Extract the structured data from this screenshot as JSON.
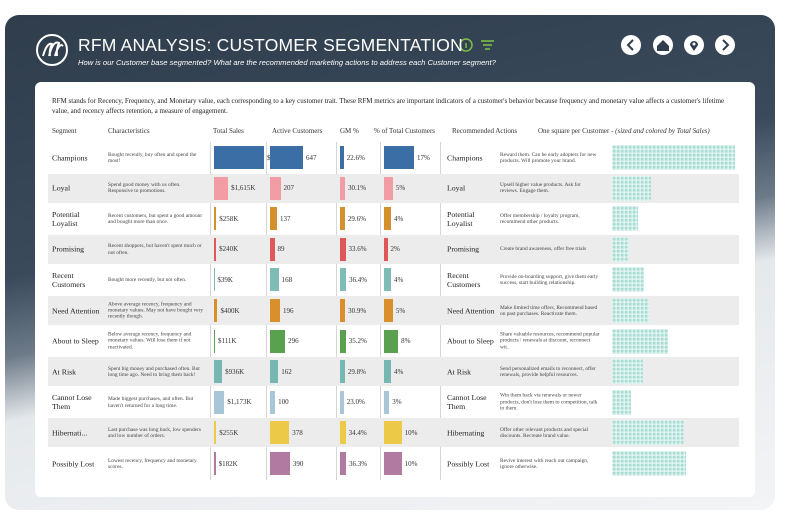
{
  "header": {
    "title": "RFM ANALYSIS: CUSTOMER SEGMENTATION",
    "subtitle": "How is our Customer base segmented? What are the recommended marketing actions to address each Customer segment?"
  },
  "description": "RFM stands for Recency, Frequency, and Monetary value, each corresponding to a key customer trait. These RFM metrics are important indicators of a customer's behavior because frequency and monetary value affects a customer's lifetime value, and recency affects retention, a measure of engagement.",
  "table": {
    "columns": [
      "Segment",
      "Characteristics",
      "Total Sales",
      "Active Customers",
      "GM %",
      "% of Total Customers",
      "Recommended Actions"
    ],
    "waffle_header": {
      "text": "One square per Customer - ",
      "note": "(sized and colored by Total Sales)"
    },
    "rows": [
      {
        "segment": "Champions",
        "characteristics": "Bought recently, buy often and spend the most!",
        "total_sales": 5738,
        "total_sales_label": "$5,738K",
        "active_customers": 647,
        "gm": 22.6,
        "gm_label": "22.6%",
        "pct": 17,
        "pct_label": "17%",
        "rec_segment": "Champions",
        "action": "Reward them. Can be early adopters for new products. Will promote your brand.",
        "color": "#3b6ea5"
      },
      {
        "segment": "Loyal",
        "characteristics": "Spend good money with us often. Responsive to promotions.",
        "total_sales": 1615,
        "total_sales_label": "$1,615K",
        "active_customers": 207,
        "gm": 30.1,
        "gm_label": "30.1%",
        "pct": 5,
        "pct_label": "5%",
        "rec_segment": "Loyal",
        "action": "Upsell higher value products. Ask for reviews. Engage them.",
        "color": "#f29ca3"
      },
      {
        "segment": "Potential Loyalist",
        "characteristics": "Recent customers, but spent a good amount and bought more than once.",
        "total_sales": 258,
        "total_sales_label": "$258K",
        "active_customers": 137,
        "gm": 29.6,
        "gm_label": "29.6%",
        "pct": 4,
        "pct_label": "4%",
        "rec_segment": "Potential Loyalist",
        "action": "Offer membership / loyalty program, recommend other products.",
        "color": "#d4902c"
      },
      {
        "segment": "Promising",
        "characteristics": "Recent shoppers, but haven't spent much or not often.",
        "total_sales": 240,
        "total_sales_label": "$240K",
        "active_customers": 89,
        "gm": 33.6,
        "gm_label": "33.6%",
        "pct": 2,
        "pct_label": "2%",
        "rec_segment": "Promising",
        "action": "Create brand awareness, offer free trials",
        "color": "#e05759"
      },
      {
        "segment": "Recent Customers",
        "characteristics": "Bought more recently, but not often.",
        "total_sales": 39,
        "total_sales_label": "$39K",
        "active_customers": 168,
        "gm": 36.4,
        "gm_label": "36.4%",
        "pct": 4,
        "pct_label": "4%",
        "rec_segment": "Recent Customers",
        "action": "Provide on-boarding support, give them early success, start building relationship.",
        "color": "#7fbcb6"
      },
      {
        "segment": "Need Attention",
        "characteristics": "Above average recency, frequency and monetary values. May not have bought very recently though.",
        "total_sales": 400,
        "total_sales_label": "$400K",
        "active_customers": 196,
        "gm": 30.9,
        "gm_label": "30.9%",
        "pct": 5,
        "pct_label": "5%",
        "rec_segment": "Need Attention",
        "action": "Make limited time offers, Recommend based on past purchases. Reactivate them.",
        "color": "#d98f2b"
      },
      {
        "segment": "About to Sleep",
        "characteristics": "Below average recency, frequency and monetary values. Will lose them if not reactivated.",
        "total_sales": 111,
        "total_sales_label": "$111K",
        "active_customers": 296,
        "gm": 35.2,
        "gm_label": "35.2%",
        "pct": 8,
        "pct_label": "8%",
        "rec_segment": "About to Sleep",
        "action": "Share valuable resources, recommend popular products / renewals at discount, reconnect wit..",
        "color": "#59a14f"
      },
      {
        "segment": "At Risk",
        "characteristics": "Spent big money and purchased often. But long time ago. Need to bring them back!",
        "total_sales": 936,
        "total_sales_label": "$936K",
        "active_customers": 162,
        "gm": 29.8,
        "gm_label": "29.8%",
        "pct": 4,
        "pct_label": "4%",
        "rec_segment": "At Risk",
        "action": "Send personalized emails to reconnect, offer renewals, provide helpful resources.",
        "color": "#76b7b2"
      },
      {
        "segment": "Cannot Lose Them",
        "characteristics": "Made biggest purchases, and often. But haven't returned for a long time.",
        "total_sales": 1173,
        "total_sales_label": "$1,173K",
        "active_customers": 100,
        "gm": 23.0,
        "gm_label": "23.0%",
        "pct": 3,
        "pct_label": "3%",
        "rec_segment": "Cannot Lose Them",
        "action": "Win them back via renewals or newer products, don't lose them to competition, talk to them.",
        "color": "#a9c6d8"
      },
      {
        "segment": "Hibernati...",
        "characteristics": "Last purchase was long back, low spenders and low number of orders.",
        "total_sales": 255,
        "total_sales_label": "$255K",
        "active_customers": 378,
        "gm": 34.4,
        "gm_label": "34.4%",
        "pct": 10,
        "pct_label": "10%",
        "rec_segment": "Hibernating",
        "action": "Offer other relevant products and special discounts. Recreate brand value.",
        "color": "#edc948"
      },
      {
        "segment": "Possibly Lost",
        "characteristics": "Lowest recency, frequency and monetary scores.",
        "total_sales": 182,
        "total_sales_label": "$182K",
        "active_customers": 390,
        "gm": 36.3,
        "gm_label": "36.3%",
        "pct": 10,
        "pct_label": "10%",
        "rec_segment": "Possibly Lost",
        "action": "Revive interest with reach out campaign, ignore otherwise.",
        "color": "#b07aa1"
      }
    ]
  }
}
